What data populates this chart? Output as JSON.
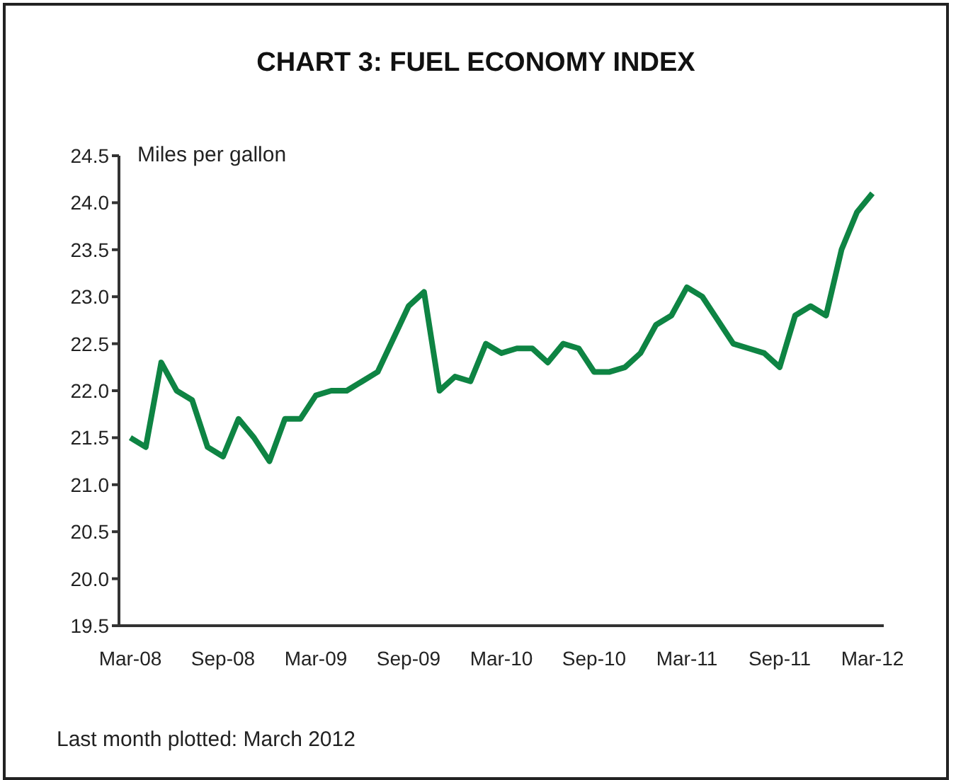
{
  "chart_data": {
    "type": "line",
    "title": "CHART 3: FUEL ECONOMY INDEX",
    "ylabel": "Miles per gallon",
    "categories": [
      "Mar-08",
      null,
      null,
      null,
      null,
      null,
      "Sep-08",
      null,
      null,
      null,
      null,
      null,
      "Mar-09",
      null,
      null,
      null,
      null,
      null,
      "Sep-09",
      null,
      null,
      null,
      null,
      null,
      "Mar-10",
      null,
      null,
      null,
      null,
      null,
      "Sep-10",
      null,
      null,
      null,
      null,
      null,
      "Mar-11",
      null,
      null,
      null,
      null,
      null,
      "Sep-11",
      null,
      null,
      null,
      null,
      null,
      "Mar-12"
    ],
    "series": [
      {
        "color": "#0e8443",
        "values": [
          21.5,
          21.4,
          22.3,
          22.0,
          21.9,
          21.4,
          21.3,
          21.7,
          21.5,
          21.25,
          21.7,
          21.7,
          21.95,
          22.0,
          22.0,
          22.1,
          22.2,
          22.55,
          22.9,
          23.05,
          22.0,
          22.15,
          22.1,
          22.5,
          22.4,
          22.45,
          22.45,
          22.3,
          22.5,
          22.45,
          22.2,
          22.2,
          22.25,
          22.4,
          22.7,
          22.8,
          23.1,
          23.0,
          22.75,
          22.5,
          22.45,
          22.4,
          22.25,
          22.8,
          22.9,
          22.8,
          23.5,
          23.9,
          24.1
        ]
      }
    ],
    "ylim": [
      19.5,
      24.5
    ],
    "yticks": [
      {
        "value": 19.5,
        "label": "19.5"
      },
      {
        "value": 20,
        "label": "20.0"
      },
      {
        "value": 20.5,
        "label": "20.5"
      },
      {
        "value": 21,
        "label": "21.0"
      },
      {
        "value": 21.5,
        "label": "21.5"
      },
      {
        "value": 22,
        "label": "22.0"
      },
      {
        "value": 22.5,
        "label": "22.5"
      },
      {
        "value": 23,
        "label": "23.0"
      },
      {
        "value": 23.5,
        "label": "23.5"
      },
      {
        "value": 24,
        "label": "24.0"
      },
      {
        "value": 24.5,
        "label": "24.5"
      }
    ],
    "grid": false,
    "legend": false,
    "marker": "none",
    "line_style": "solid",
    "annotations": [
      "Last month plotted: March 2012"
    ]
  }
}
